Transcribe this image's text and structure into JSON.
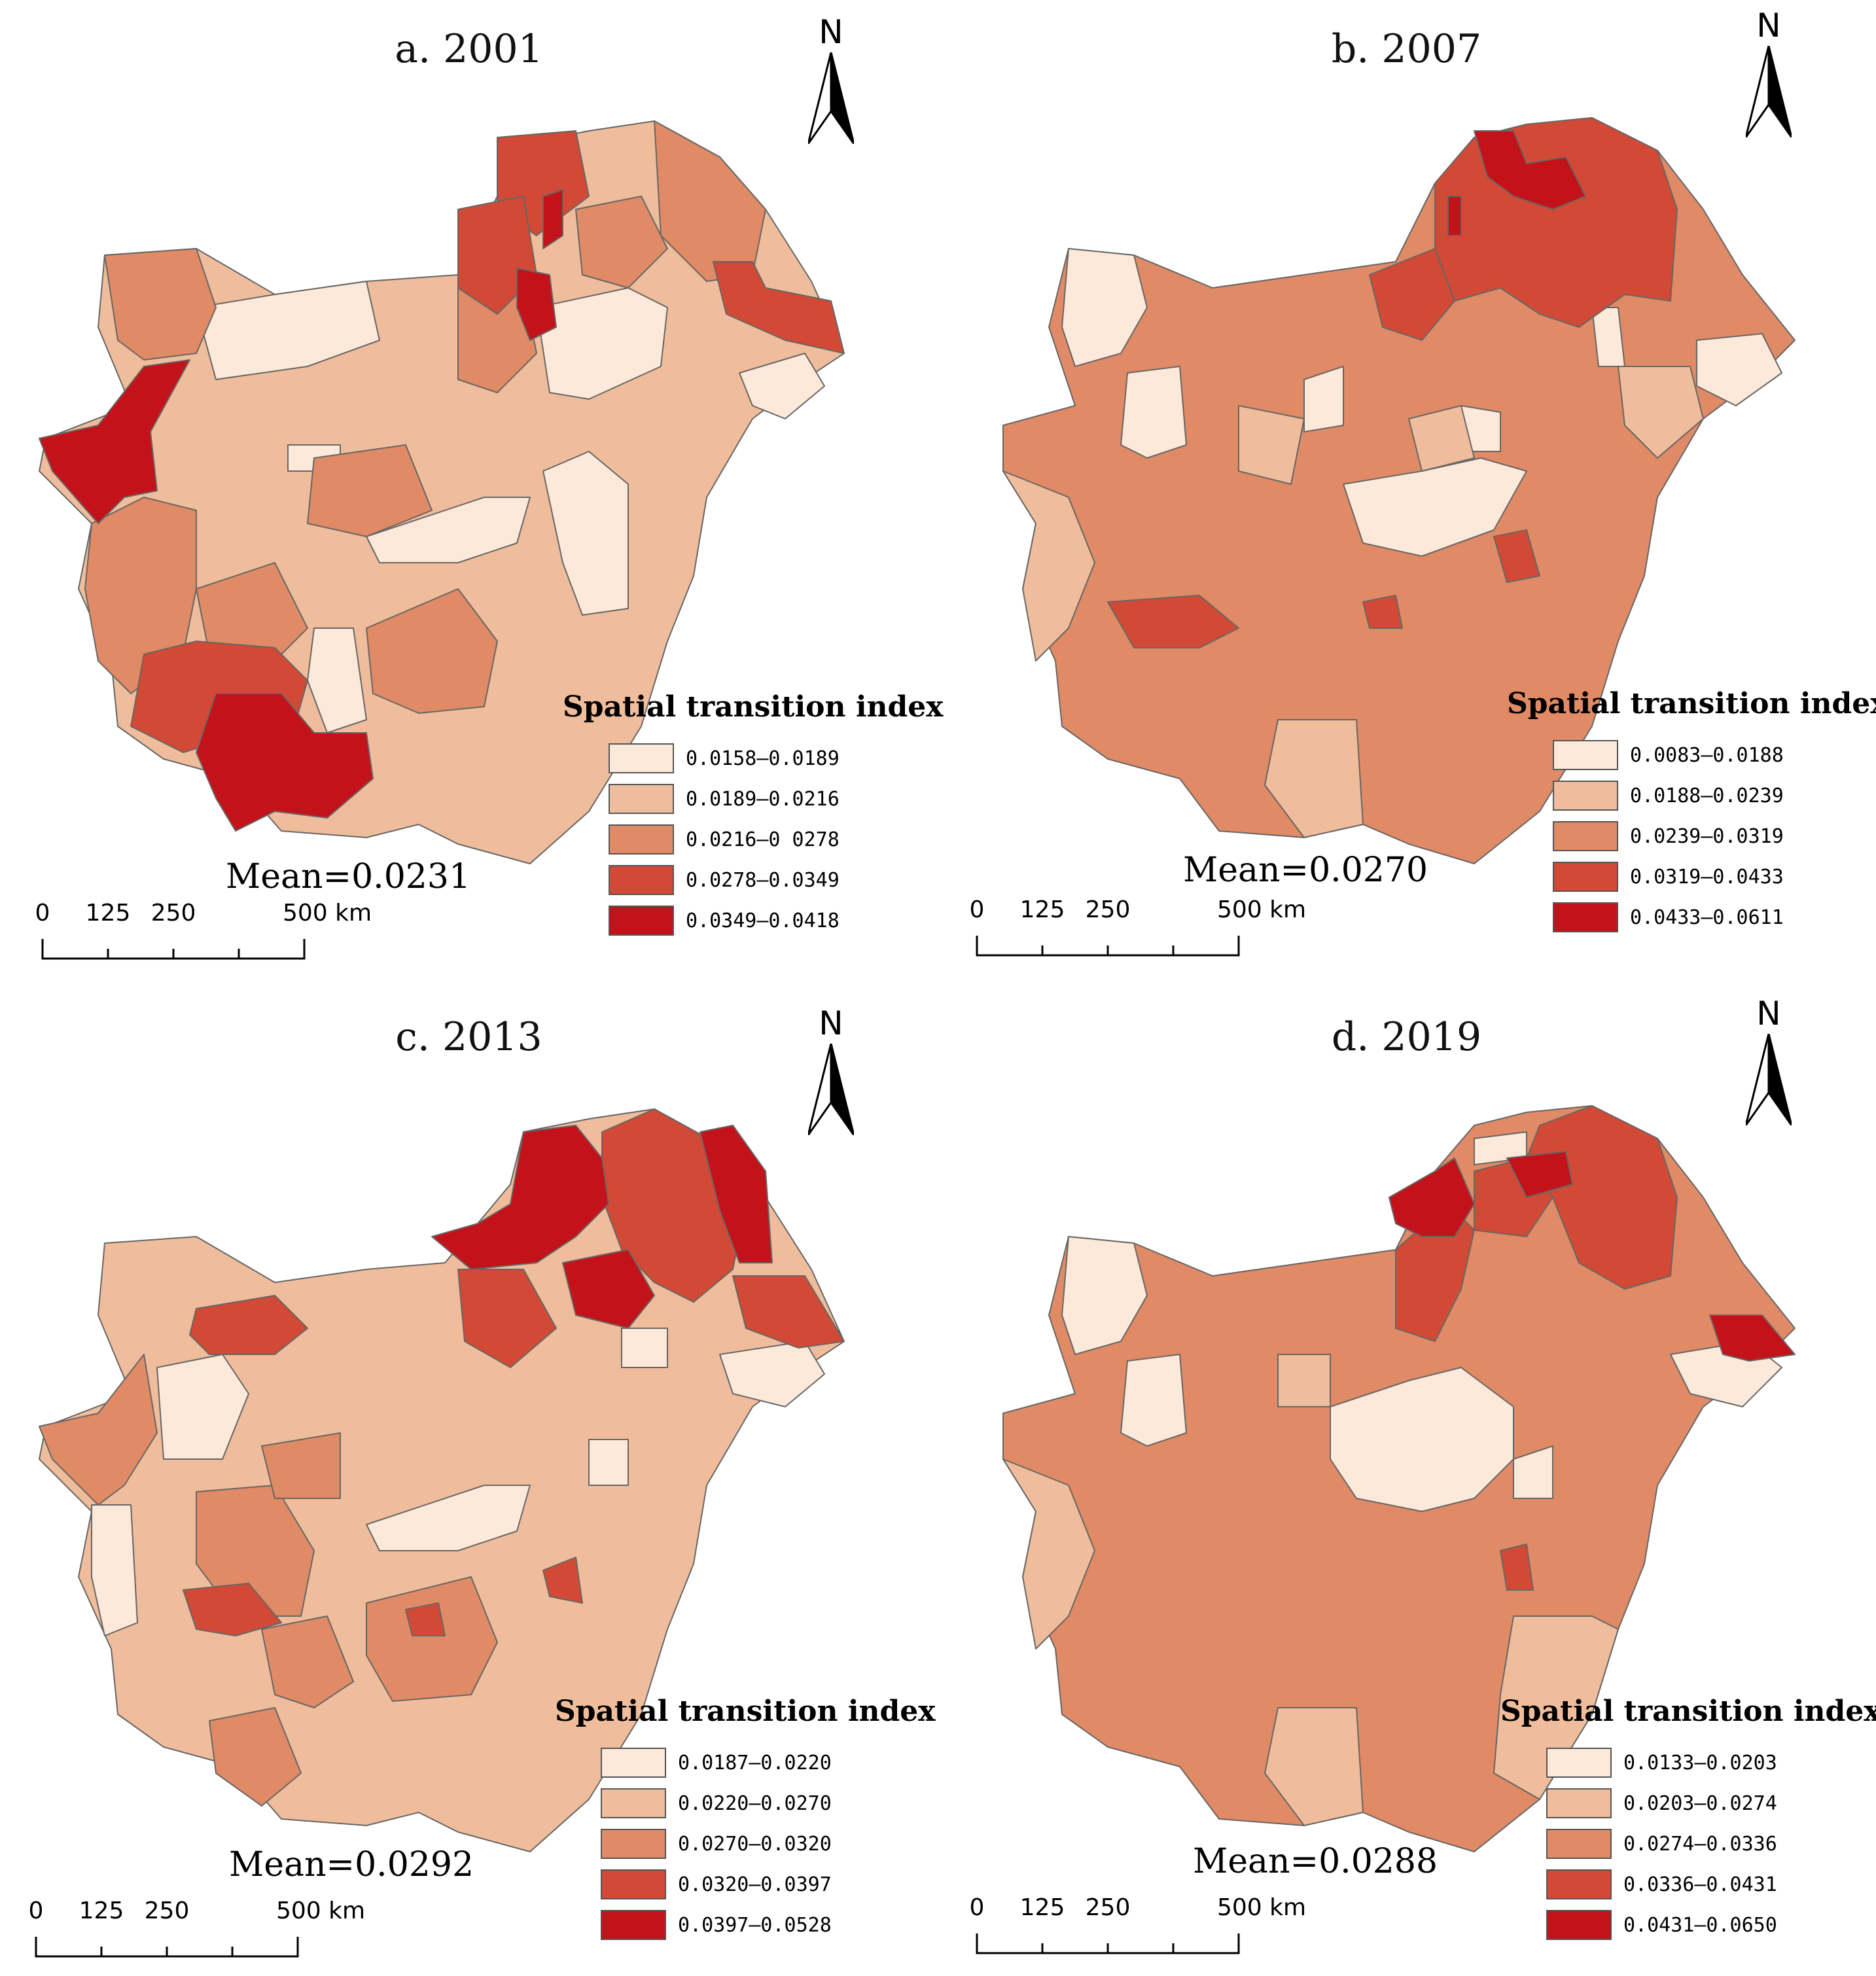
{
  "figure": {
    "north_label": "N",
    "legend_title": "Spatial transition index",
    "scale_labels": [
      "0",
      "125",
      "250",
      "500 km"
    ],
    "palette": [
      "#fde9d9",
      "#efbd9b",
      "#e08a66",
      "#d24a35",
      "#c4121a"
    ]
  },
  "panels": [
    {
      "title": "a. 2001",
      "mean": "Mean=0.0231",
      "legend": [
        "0.0158—0.0189",
        "0.0189—0.0216",
        "0.0216—0 0278",
        "0.0278—0.0349",
        "0.0349—0.0418"
      ]
    },
    {
      "title": "b. 2007",
      "mean": "Mean=0.0270",
      "legend": [
        "0.0083—0.0188",
        "0.0188—0.0239",
        "0.0239—0.0319",
        "0.0319—0.0433",
        "0.0433—0.0611"
      ]
    },
    {
      "title": "c. 2013",
      "mean": "Mean=0.0292",
      "legend": [
        "0.0187—0.0220",
        "0.0220—0.0270",
        "0.0270—0.0320",
        "0.0320—0.0397",
        "0.0397—0.0528"
      ]
    },
    {
      "title": "d. 2019",
      "mean": "Mean=0.0288",
      "legend": [
        "0.0133—0.0203",
        "0.0203—0.0274",
        "0.0274—0.0336",
        "0.0336—0.0431",
        "0.0431—0.0650"
      ]
    }
  ]
}
